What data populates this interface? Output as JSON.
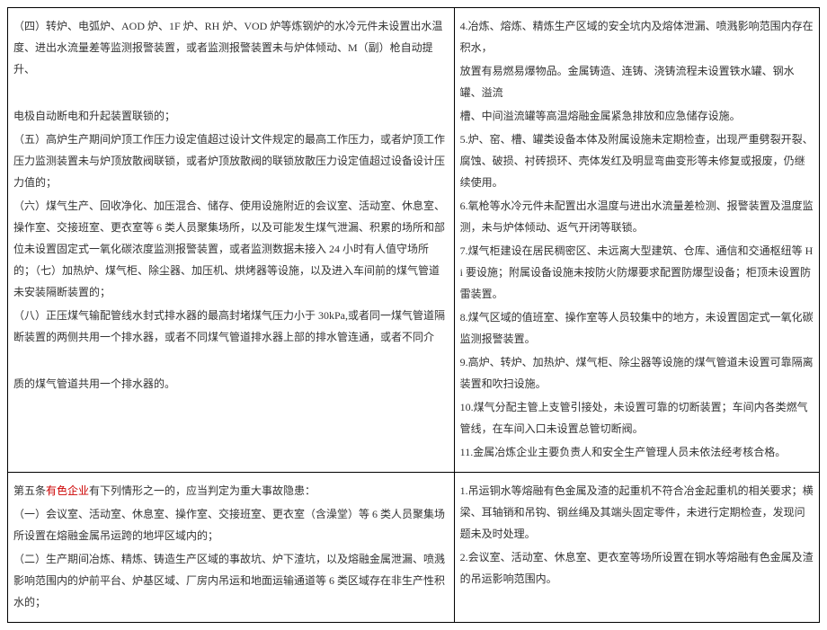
{
  "row1": {
    "left": {
      "p1": "（四）转炉、电弧炉、AOD 炉、1F 炉、RH 炉、VOD 炉等炼钢炉的水冷元件未设置出水温度、进出水流量差等监测报警装置，或者监测报警装置未与炉体倾动、M（副）枪自动提升、",
      "p2": "电极自动断电和升起装置联锁的；",
      "p3": "（五）高炉生产期间炉顶工作压力设定值超过设计文件规定的最高工作压力，或者炉顶工作压力监测装置未与炉顶放散阀联锁，或者炉顶放散阀的联锁放散压力设定值超过设备设计压力值的；",
      "p4": "（六）煤气生产、回收净化、加压混合、储存、使用设施附近的会议室、活动室、休息室、操作室、交接班室、更衣室等 6 类人员聚集场所，以及可能发生煤气泄漏、积累的场所和部位未设置固定式一氧化碳浓度监测报警装置，或者监测数据未接入 24 小时有人值守场所的；（七）加热炉、煤气柜、除尘器、加压机、烘烤器等设施，以及进入车间前的煤气管道未安装隔断装置的；",
      "p5": "（八）正压煤气输配管线水封式排水器的最高封堵煤气压力小于 30kPa,或者同一煤气管道隔断装置的两侧共用一个排水器，或者不同煤气管道排水器上部的排水管连通，或者不同介",
      "p6": "质的煤气管道共用一个排水器的。"
    },
    "right": {
      "p1": "4.冶炼、熔炼、精炼生产区域的安全坑内及熔体泄漏、喷溅影响范围内存在积水，",
      "p2": "放置有易燃易爆物品。金属铸造、连铸、浇铸流程未设置铁水罐、钢水罐、溢流",
      "p3": "槽、中间溢流罐等高温熔融金属紧急排放和应急储存设施。",
      "p4": "5.炉、窑、槽、罐类设备本体及附属设施未定期检查，出现严重劈裂开裂、腐蚀、破损、衬砖损环、壳体发红及明显弯曲变形等未修复或报废，仍继续使用。",
      "p5": "6.氧枪等水冷元件未配置出水温度与进出水流量差检测、报警装置及温度监测，未与炉体倾动、返气开闭等联锁。",
      "p6": "7.煤气柜建设在居民稠密区、未远离大型建筑、仓库、通信和交通枢纽等 Hi 要设施；附属设备设施未按防火防爆要求配置防爆型设备；柜顶未设置防雷装置。",
      "p7": "8.煤气区域的值班室、操作室等人员较集中的地方，未设置固定式一氧化碳监测报警装置。",
      "p8": "9.高炉、转炉、加热炉、煤气柜、除尘器等设施的煤气管道未设置可靠隔离装置和吹扫设施。",
      "p9": "10.煤气分配主管上支管引接处，未设置可靠的切断装置；车间内各类燃气管线，在车间入口未设置总管切断阀。",
      "p10": "11.金属冶炼企业主要负责人和安全生产管理人员未依法经考核合格。"
    }
  },
  "row2": {
    "left": {
      "p1_a": "第五条",
      "p1_red": "有色企业",
      "p1_b": "有下列情形之一的，应当判定为重大事故隐患：",
      "p2": "（一）会议室、活动室、休息室、操作室、交接班室、更衣室（含澡堂）等 6 类人员聚集场所设置在熔融金属吊运跨的地坪区域内的；",
      "p3": "（二）生产期间冶炼、精炼、铸造生产区域的事故坑、炉下渣坑，以及熔融金属泄漏、喷溅影响范围内的炉前平台、炉基区域、厂房内吊运和地面运输通道等 6 类区域存在非生产性积水的；"
    },
    "right": {
      "p1": "1.吊运铜水等熔融有色金属及渣的起重机不符合冶金起重机的相关要求；横梁、耳轴销和吊钩、钢丝绳及其端头固定零件，未进行定期检查，发现问题未及时处理。",
      "p2": "2.会议室、活动室、休息室、更衣室等场所设置在铜水等熔融有色金属及渣的吊运影响范围内。"
    }
  }
}
